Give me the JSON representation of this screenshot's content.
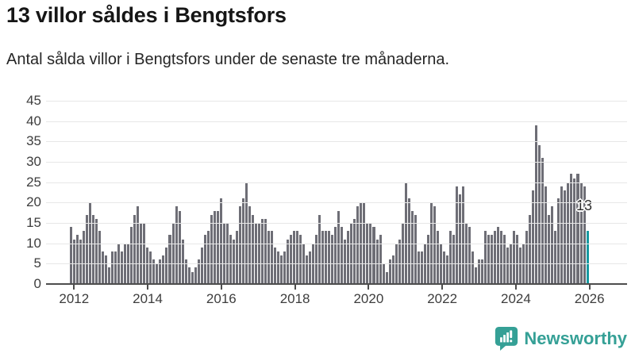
{
  "header": {
    "title": "13 villor såldes i Bengtsfors",
    "subtitle": "Antal sålda villor i Bengtsfors under de senaste tre månaderna."
  },
  "chart_data": {
    "type": "bar",
    "title": "13 villor såldes i Bengtsfors",
    "subtitle": "Antal sålda villor i Bengtsfors under de senaste tre månaderna.",
    "x_start": "2012-01",
    "x_unit": "month",
    "x_tick_labels": [
      "2012",
      "2014",
      "2016",
      "2018",
      "2020",
      "2022",
      "2024",
      "2026"
    ],
    "y_ticks": [
      0,
      5,
      10,
      15,
      20,
      25,
      30,
      35,
      40,
      45
    ],
    "ylim": [
      0,
      45
    ],
    "grid": true,
    "bar_color": "#6e6e76",
    "values": [
      14,
      11,
      12,
      11,
      13,
      17,
      20,
      17,
      16,
      13,
      8,
      7,
      4,
      8,
      8,
      10,
      8,
      10,
      10,
      14,
      17,
      19,
      15,
      15,
      9,
      8,
      6,
      5,
      6,
      7,
      9,
      12,
      15,
      19,
      18,
      11,
      6,
      4,
      3,
      4,
      6,
      9,
      12,
      13,
      17,
      18,
      18,
      21,
      15,
      15,
      12,
      11,
      13,
      19,
      21,
      25,
      19,
      17,
      15,
      15,
      16,
      16,
      13,
      13,
      9,
      8,
      7,
      8,
      11,
      12,
      13,
      13,
      12,
      10,
      7,
      8,
      10,
      12,
      17,
      13,
      13,
      13,
      12,
      14,
      18,
      14,
      11,
      13,
      15,
      16,
      19,
      20,
      20,
      15,
      15,
      14,
      11,
      12,
      5,
      3,
      6,
      7,
      10,
      11,
      15,
      25,
      21,
      18,
      17,
      8,
      8,
      10,
      12,
      20,
      19,
      13,
      10,
      8,
      7,
      13,
      12,
      24,
      22,
      24,
      15,
      14,
      8,
      4,
      6,
      6,
      13,
      12,
      12,
      13,
      14,
      13,
      12,
      9,
      10,
      13,
      12,
      9,
      10,
      13,
      17,
      23,
      39,
      34,
      31,
      24,
      17,
      19,
      13,
      21,
      24,
      23,
      25,
      27,
      26,
      27,
      25,
      24,
      13
    ],
    "highlight": {
      "index": 162,
      "value": 13,
      "label": "13",
      "color": "#179aa1"
    }
  },
  "branding": {
    "logo_text": "Newsworthy",
    "logo_color": "#35a096",
    "logo_icon": "bar-chart-speech-bubble"
  }
}
